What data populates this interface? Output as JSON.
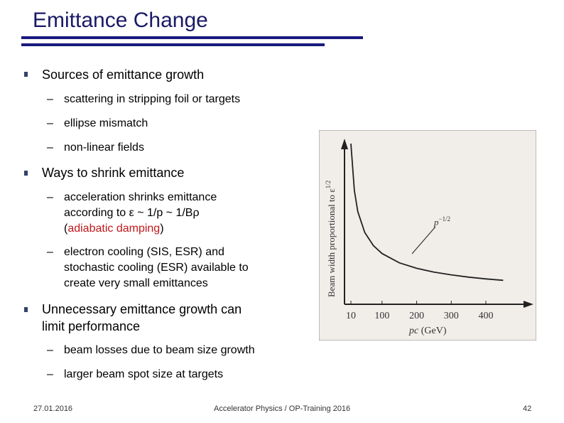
{
  "title": "Emittance Change",
  "bullets": [
    {
      "text": "Sources of emittance growth",
      "subs": [
        "scattering in stripping foil or targets",
        "ellipse mismatch",
        "non-linear fields"
      ]
    },
    {
      "text": "Ways to shrink emittance",
      "subs": [
        [
          "acceleration shrinks emittance",
          "according to ε ~ 1/p ~ 1/Bρ",
          "(",
          "adiabatic damping",
          ")"
        ],
        [
          "electron cooling (SIS, ESR) and",
          "stochastic cooling (ESR) available to",
          "create very small emittances"
        ]
      ]
    },
    {
      "lines": [
        "Unnecessary emittance growth can",
        "limit performance"
      ],
      "subs": [
        "beam losses due to beam size growth",
        "larger beam spot size at targets"
      ]
    }
  ],
  "dash": "–",
  "figure": {
    "y_label": "Beam width proportional to ε",
    "y_label_exp": "1/2",
    "curve_label": "p",
    "curve_label_exp": "−1/2",
    "x_label": "pc (GeV)",
    "x_ticks": [
      "10",
      "100",
      "200",
      "300",
      "400"
    ]
  },
  "chart_data": {
    "type": "line",
    "title": "",
    "xlabel": "pc (GeV)",
    "ylabel": "Beam width proportional to ε^1/2",
    "x_ticks": [
      10,
      100,
      200,
      300,
      400
    ],
    "series": [
      {
        "x": [
          10,
          20,
          30,
          50,
          75,
          100,
          150,
          200,
          250,
          300,
          350,
          400,
          450
        ],
        "y": [
          1.0,
          0.707,
          0.577,
          0.447,
          0.365,
          0.316,
          0.258,
          0.224,
          0.2,
          0.183,
          0.169,
          0.158,
          0.149
        ]
      }
    ],
    "grid": false
  },
  "footer": {
    "date": "27.01.2016",
    "center": "Accelerator Physics / OP-Training 2016",
    "page": "42"
  }
}
